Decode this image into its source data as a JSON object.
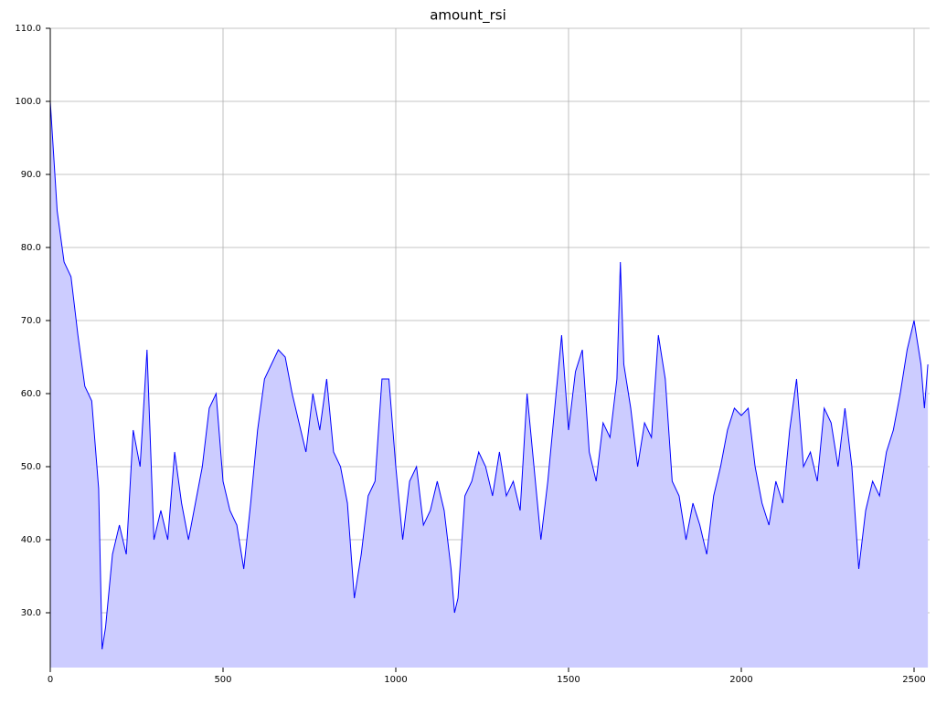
{
  "chart_data": {
    "type": "area",
    "title": "amount_rsi",
    "x": [
      0,
      20,
      40,
      60,
      80,
      100,
      120,
      140,
      150,
      160,
      180,
      200,
      220,
      240,
      260,
      280,
      300,
      320,
      340,
      360,
      380,
      400,
      420,
      440,
      460,
      480,
      500,
      520,
      540,
      560,
      580,
      600,
      620,
      640,
      660,
      680,
      700,
      720,
      740,
      760,
      780,
      800,
      820,
      840,
      860,
      880,
      900,
      920,
      940,
      960,
      980,
      1000,
      1020,
      1040,
      1060,
      1080,
      1100,
      1120,
      1140,
      1160,
      1170,
      1180,
      1200,
      1220,
      1240,
      1260,
      1280,
      1300,
      1320,
      1340,
      1360,
      1380,
      1400,
      1420,
      1440,
      1460,
      1480,
      1500,
      1520,
      1540,
      1560,
      1580,
      1600,
      1620,
      1640,
      1650,
      1660,
      1680,
      1700,
      1720,
      1740,
      1760,
      1780,
      1800,
      1820,
      1840,
      1860,
      1880,
      1900,
      1920,
      1940,
      1960,
      1980,
      2000,
      2020,
      2040,
      2060,
      2080,
      2100,
      2120,
      2140,
      2160,
      2180,
      2200,
      2220,
      2240,
      2260,
      2280,
      2300,
      2320,
      2340,
      2360,
      2380,
      2400,
      2420,
      2440,
      2460,
      2480,
      2500,
      2520,
      2530,
      2540
    ],
    "values": [
      100,
      85,
      78,
      76,
      68,
      61,
      59,
      47,
      25,
      28,
      38,
      42,
      38,
      55,
      50,
      66,
      40,
      44,
      40,
      52,
      45,
      40,
      45,
      50,
      58,
      60,
      48,
      44,
      42,
      36,
      45,
      55,
      62,
      64,
      66,
      65,
      60,
      56,
      52,
      60,
      55,
      62,
      52,
      50,
      45,
      32,
      38,
      46,
      48,
      62,
      62,
      50,
      40,
      48,
      50,
      42,
      44,
      48,
      44,
      36,
      30,
      32,
      46,
      48,
      52,
      50,
      46,
      52,
      46,
      48,
      44,
      60,
      50,
      40,
      48,
      58,
      68,
      55,
      63,
      66,
      52,
      48,
      56,
      54,
      62,
      78,
      64,
      58,
      50,
      56,
      54,
      68,
      62,
      48,
      46,
      40,
      45,
      42,
      38,
      46,
      50,
      55,
      58,
      57,
      58,
      50,
      45,
      42,
      48,
      45,
      55,
      62,
      50,
      52,
      48,
      58,
      56,
      50,
      58,
      50,
      36,
      44,
      48,
      46,
      52,
      55,
      60,
      66,
      70,
      64,
      58,
      64
    ],
    "line_color": "#0000ff",
    "fill_color": "#ccccff",
    "xlim": [
      0,
      2545
    ],
    "ylim": [
      22.5,
      110
    ],
    "xticks": [
      0,
      500,
      1000,
      1500,
      2000,
      2500
    ],
    "yticks": [
      {
        "value": 30,
        "label": "30.0"
      },
      {
        "value": 40,
        "label": "40.0"
      },
      {
        "value": 50,
        "label": "50.0"
      },
      {
        "value": 60,
        "label": "60.0"
      },
      {
        "value": 70,
        "label": "70.0"
      },
      {
        "value": 80,
        "label": "80.0"
      },
      {
        "value": 90,
        "label": "90.0"
      },
      {
        "value": 100,
        "label": "100.0"
      },
      {
        "value": 110,
        "label": "110.0"
      }
    ],
    "grid": true
  }
}
